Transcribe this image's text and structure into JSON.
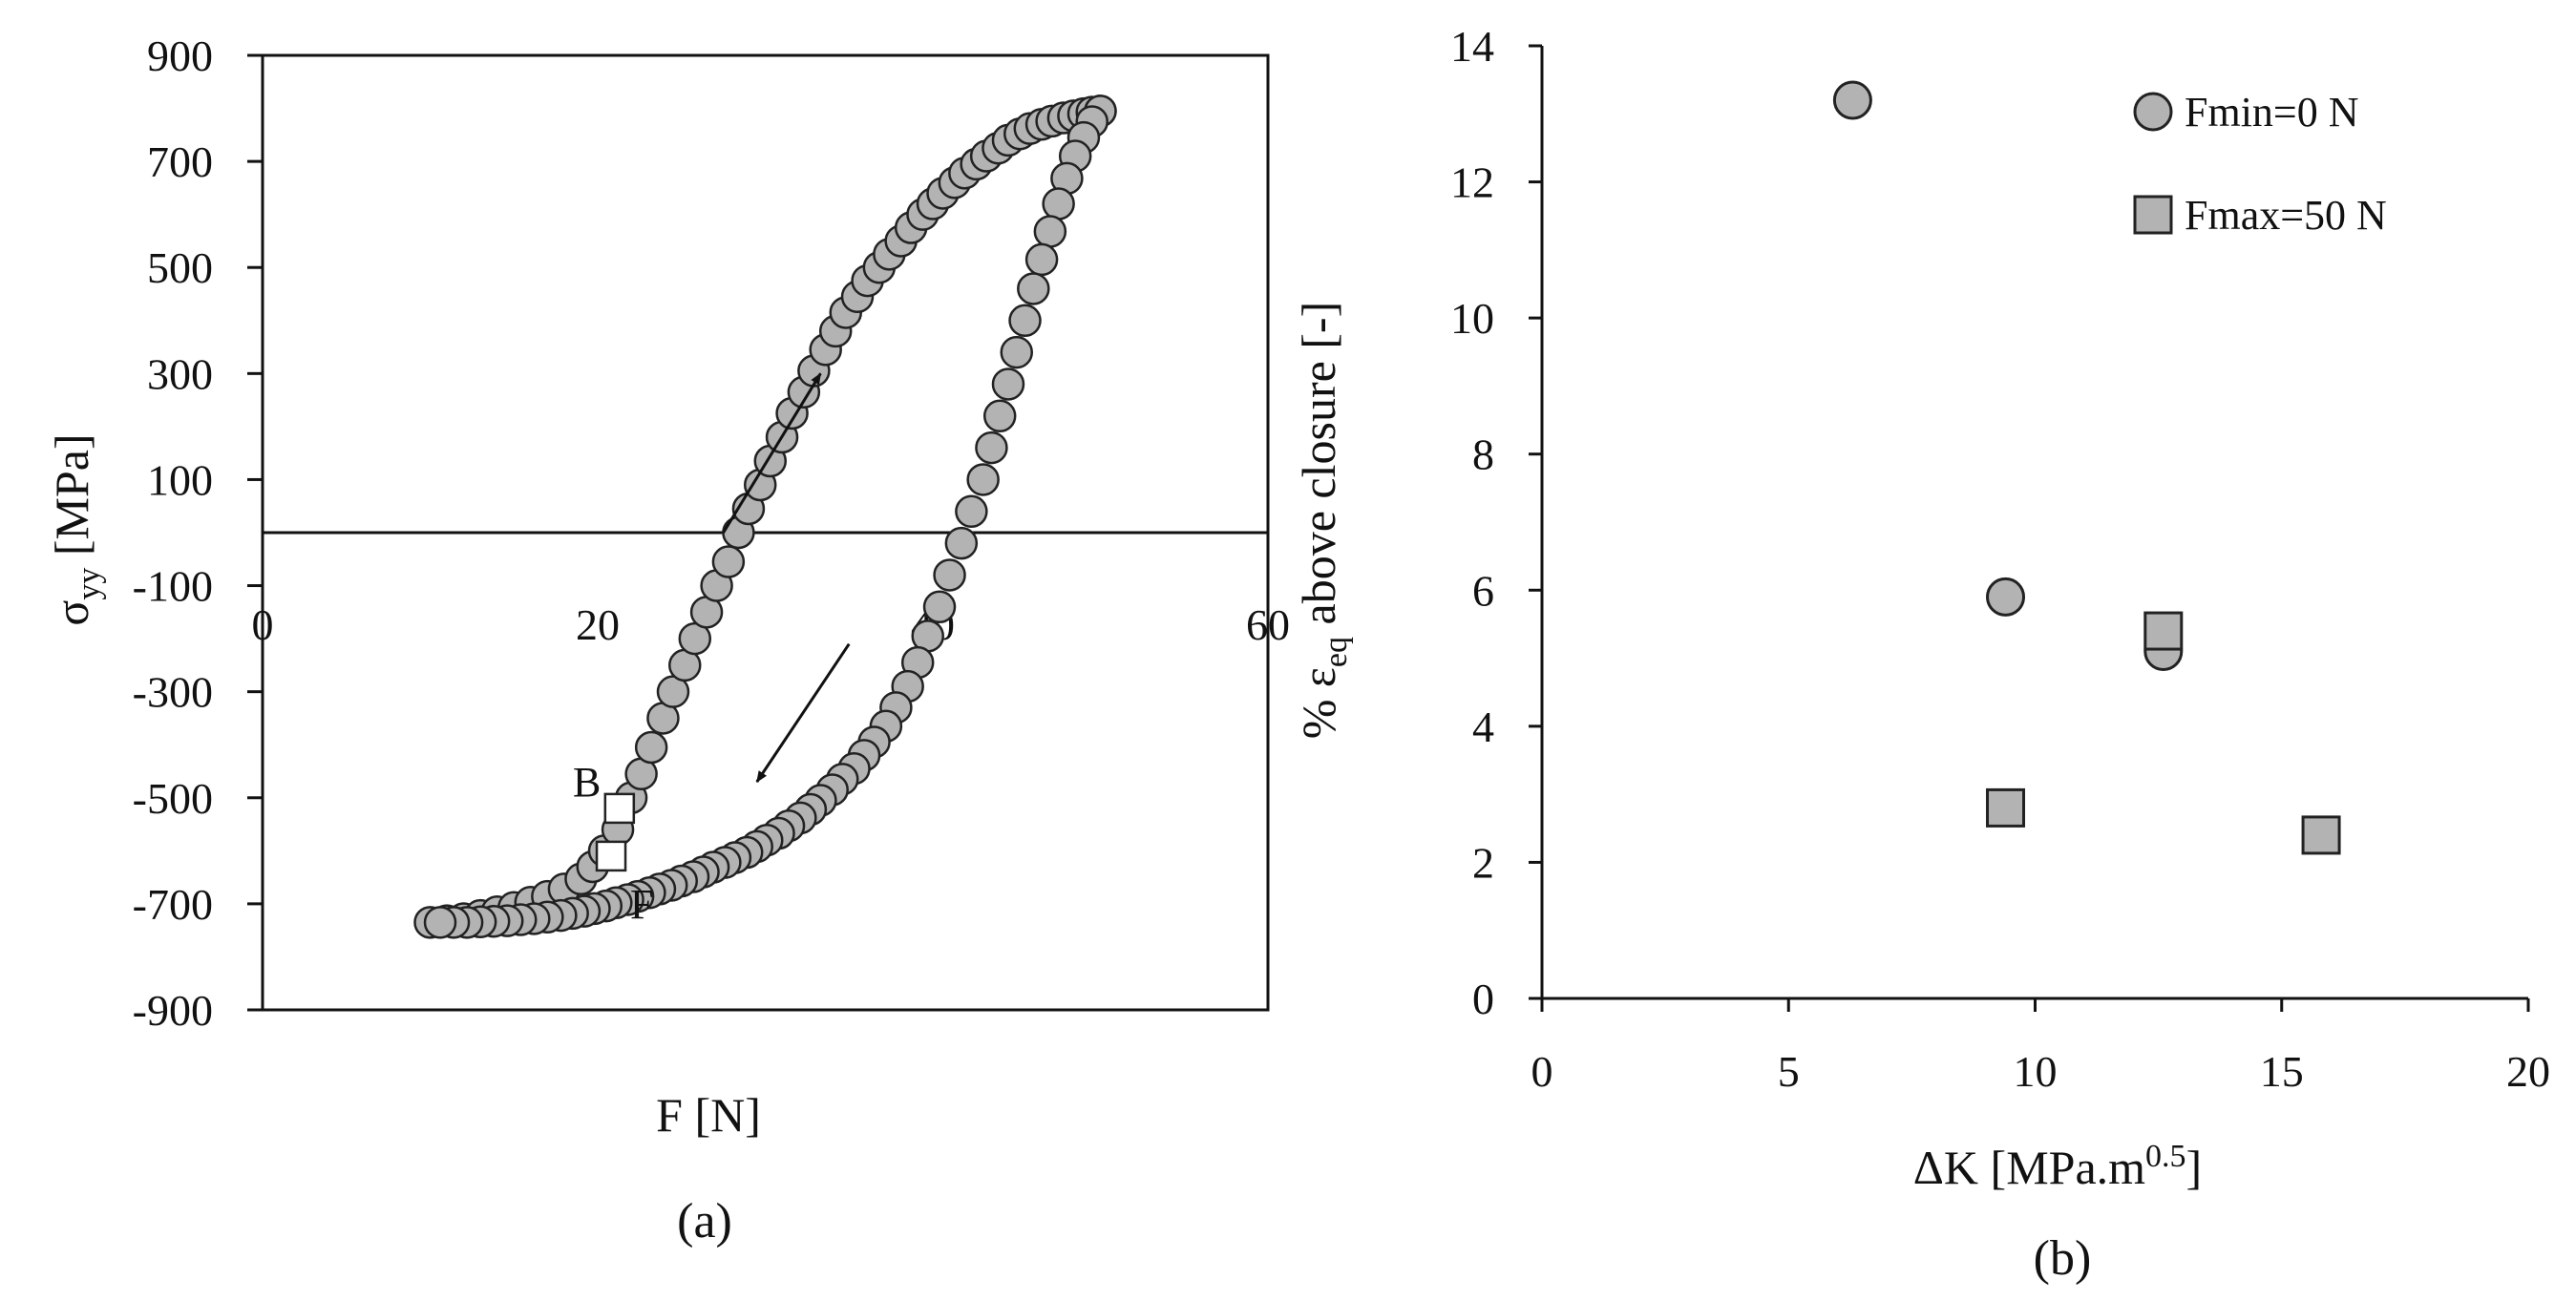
{
  "panel_labels": {
    "a": "(a)",
    "b": "(b)"
  },
  "chart_data": [
    {
      "type": "scatter",
      "panel": "(a)",
      "xlabel": "F [N]",
      "ylabel": {
        "base": "σ",
        "sub": "yy",
        "rest": " [MPa]"
      },
      "xlim": [
        0,
        60
      ],
      "ylim": [
        -900,
        900
      ],
      "xticks": [
        "0",
        "20",
        "40",
        "60"
      ],
      "yticks": [
        "900",
        "700",
        "500",
        "300",
        "100",
        "-100",
        "-300",
        "-500",
        "-700",
        "-900"
      ],
      "grid": false,
      "zero_line_y": 0,
      "colors": {
        "marker_fill": "#b3b3b3",
        "marker_edge": "#222222",
        "special_fill": "#ffffff"
      },
      "series": [
        {
          "values_x": [
            10.0,
            11.0,
            12.0,
            13.0,
            14.0,
            15.0,
            16.0,
            17.0,
            18.0,
            19.0,
            19.7,
            20.4,
            21.2,
            22.0,
            22.6,
            23.2,
            23.9,
            24.5,
            25.2,
            25.8,
            26.5,
            27.1,
            27.8,
            28.4,
            29.0,
            29.7,
            30.3,
            31.0,
            31.6,
            32.3,
            32.9,
            33.6,
            34.2,
            34.8,
            35.5,
            36.1,
            36.8,
            37.4,
            38.1,
            38.7,
            39.4,
            40.0,
            40.6,
            41.3,
            41.9,
            42.6,
            43.2,
            43.9,
            44.5,
            45.2,
            45.8,
            46.5,
            47.1,
            47.8,
            48.4,
            49.0,
            49.5,
            50.0
          ],
          "values_y": [
            -735,
            -732,
            -728,
            -722,
            -715,
            -707,
            -697,
            -686,
            -672,
            -653,
            -630,
            -600,
            -560,
            -500,
            -455,
            -405,
            -350,
            -300,
            -250,
            -200,
            -150,
            -100,
            -55,
            0,
            45,
            90,
            135,
            180,
            225,
            265,
            305,
            345,
            380,
            415,
            445,
            475,
            500,
            525,
            550,
            575,
            600,
            620,
            640,
            660,
            678,
            695,
            710,
            725,
            740,
            752,
            762,
            770,
            776,
            782,
            786,
            790,
            793,
            795
          ]
        },
        {
          "values_x": [
            50.0,
            49.5,
            49.0,
            48.5,
            48.0,
            47.5,
            47.0,
            46.5,
            46.0,
            45.5,
            45.0,
            44.5,
            44.0,
            43.5,
            43.0,
            42.3,
            41.7,
            41.0,
            40.4,
            39.7,
            39.1,
            38.5,
            37.8,
            37.2,
            36.5,
            35.9,
            35.3,
            34.6,
            34.0,
            33.3,
            32.7,
            32.1,
            31.4,
            30.8,
            30.1,
            29.5,
            28.9,
            28.2,
            27.6,
            26.9,
            26.3,
            25.7,
            25.0,
            24.4,
            23.7,
            23.1,
            22.4,
            21.8,
            21.1,
            20.5,
            19.8,
            19.2,
            18.5,
            17.8,
            17.0,
            16.2,
            15.4,
            14.6,
            13.8,
            13.0,
            12.2,
            11.4,
            10.6
          ],
          "values_y": [
            795,
            775,
            745,
            710,
            668,
            620,
            568,
            515,
            460,
            400,
            340,
            280,
            220,
            160,
            100,
            40,
            -20,
            -80,
            -140,
            -195,
            -245,
            -290,
            -330,
            -365,
            -395,
            -420,
            -445,
            -465,
            -485,
            -505,
            -522,
            -538,
            -553,
            -567,
            -580,
            -592,
            -603,
            -613,
            -622,
            -631,
            -640,
            -649,
            -657,
            -665,
            -672,
            -679,
            -686,
            -692,
            -698,
            -704,
            -709,
            -714,
            -718,
            -722,
            -725,
            -728,
            -730,
            -732,
            -733,
            -734,
            -735,
            -735,
            -735
          ]
        }
      ],
      "special_points": [
        {
          "label": "B",
          "x": 21.3,
          "y": -520
        },
        {
          "label": "F",
          "x": 20.8,
          "y": -610
        }
      ],
      "arrows": [
        {
          "from": [
            27.5,
            0
          ],
          "to": [
            33.3,
            300
          ]
        },
        {
          "from": [
            35.0,
            -210
          ],
          "to": [
            29.5,
            -470
          ]
        }
      ]
    },
    {
      "type": "scatter",
      "panel": "(b)",
      "xlabel": {
        "base": "ΔK [MPa.m",
        "sup": "0.5",
        "rest": "]"
      },
      "ylabel": {
        "base": "% ε",
        "sub": "eq",
        "rest": " above closure [-]"
      },
      "xlim": [
        0,
        20
      ],
      "ylim": [
        0,
        14
      ],
      "xticks": [
        "0",
        "5",
        "10",
        "15",
        "20"
      ],
      "yticks": [
        "0",
        "2",
        "4",
        "6",
        "8",
        "10",
        "12",
        "14"
      ],
      "grid": false,
      "legend_position": "top-right",
      "colors": {
        "marker_fill": "#b3b3b3",
        "marker_edge": "#222222"
      },
      "series": [
        {
          "name": "Fmin=0 N",
          "marker": "circle",
          "x": [
            6.3,
            9.4,
            12.6
          ],
          "y": [
            13.2,
            5.9,
            5.1
          ]
        },
        {
          "name": "Fmax=50 N",
          "marker": "square",
          "x": [
            9.4,
            12.6,
            15.8
          ],
          "y": [
            2.8,
            5.4,
            2.4
          ]
        }
      ]
    }
  ]
}
